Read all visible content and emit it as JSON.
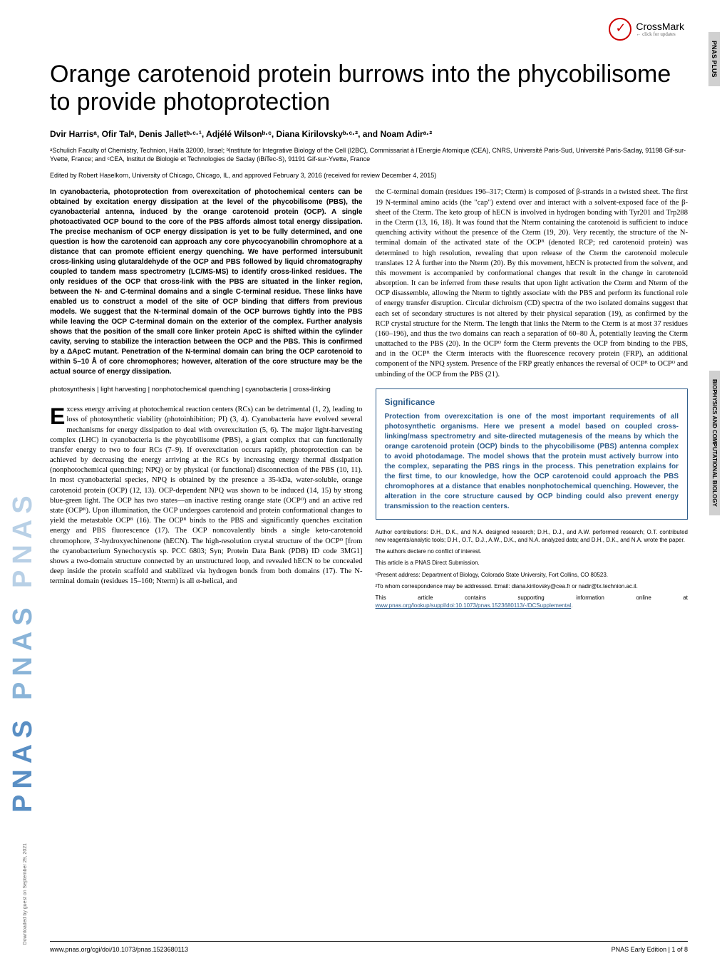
{
  "journal": {
    "logo": "PNAS",
    "plus_label": "PNAS PLUS",
    "category_label": "BIOPHYSICS AND COMPUTATIONAL BIOLOGY",
    "crossmark": "CrossMark",
    "crossmark_sub": "← click for updates"
  },
  "title": "Orange carotenoid protein burrows into the phycobilisome to provide photoprotection",
  "authors_html": "Dvir Harrisᵃ, Ofir Talᵃ, Denis Jalletᵇ·ᶜ·¹, Adjélé Wilsonᵇ·ᶜ, Diana Kirilovskyᵇ·ᶜ·², and Noam Adirᵃ·²",
  "affiliations": "ᵃSchulich Faculty of Chemistry, Technion, Haifa 32000, Israel; ᵇInstitute for Integrative Biology of the Cell (I2BC), Commissariat à l'Energie Atomique (CEA), CNRS, Université Paris-Sud, Université Paris-Saclay, 91198 Gif-sur-Yvette, France; and ᶜCEA, Institut de Biologie et Technologies de Saclay (iBiTec-S), 91191 Gif-sur-Yvette, France",
  "edited": "Edited by Robert Haselkorn, University of Chicago, Chicago, IL, and approved February 3, 2016 (received for review December 4, 2015)",
  "abstract": "In cyanobacteria, photoprotection from overexcitation of photochemical centers can be obtained by excitation energy dissipation at the level of the phycobilisome (PBS), the cyanobacterial antenna, induced by the orange carotenoid protein (OCP). A single photoactivated OCP bound to the core of the PBS affords almost total energy dissipation. The precise mechanism of OCP energy dissipation is yet to be fully determined, and one question is how the carotenoid can approach any core phycocyanobilin chromophore at a distance that can promote efficient energy quenching. We have performed intersubunit cross-linking using glutaraldehyde of the OCP and PBS followed by liquid chromatography coupled to tandem mass spectrometry (LC/MS-MS) to identify cross-linked residues. The only residues of the OCP that cross-link with the PBS are situated in the linker region, between the N- and C-terminal domains and a single C-terminal residue. These links have enabled us to construct a model of the site of OCP binding that differs from previous models. We suggest that the N-terminal domain of the OCP burrows tightly into the PBS while leaving the OCP C-terminal domain on the exterior of the complex. Further analysis shows that the position of the small core linker protein ApcC is shifted within the cylinder cavity, serving to stabilize the interaction between the OCP and the PBS. This is confirmed by a ΔApcC mutant. Penetration of the N-terminal domain can bring the OCP carotenoid to within 5–10 Å of core chromophores; however, alteration of the core structure may be the actual source of energy dissipation.",
  "keywords": "photosynthesis | light harvesting | nonphotochemical quenching | cyanobacteria | cross-linking",
  "body_left": "xcess energy arriving at photochemical reaction centers (RCs) can be detrimental (1, 2), leading to loss of photosynthetic viability (photoinhibition; PI) (3, 4). Cyanobacteria have evolved several mechanisms for energy dissipation to deal with overexcitation (5, 6). The major light-harvesting complex (LHC) in cyanobacteria is the phycobilisome (PBS), a giant complex that can functionally transfer energy to two to four RCs (7–9). If overexcitation occurs rapidly, photoprotection can be achieved by decreasing the energy arriving at the RCs by increasing energy thermal dissipation (nonphotochemical quenching; NPQ) or by physical (or functional) disconnection of the PBS (10, 11). In most cyanobacterial species, NPQ is obtained by the presence a 35-kDa, water-soluble, orange carotenoid protein (OCP) (12, 13). OCP-dependent NPQ was shown to be induced (14, 15) by strong blue-green light. The OCP has two states—an inactive resting orange state (OCPᴼ) and an active red state (OCPᴿ). Upon illumination, the OCP undergoes carotenoid and protein conformational changes to yield the metastable OCPᴿ (16). The OCPᴿ binds to the PBS and significantly quenches excitation energy and PBS fluorescence (17). The OCP noncovalently binds a single keto-carotenoid chromophore, 3′-hydroxyechinenone (hECN). The high-resolution crystal structure of the OCPᴼ [from the cyanobacterium Synechocystis sp. PCC 6803; Syn; Protein Data Bank (PDB) ID code 3MG1] shows a two-domain structure connected by an unstructured loop, and revealed hECN to be concealed deep inside the protein scaffold and stabilized via hydrogen bonds from both domains (17). The N-terminal domain (residues 15–160; Nterm) is all α-helical, and",
  "body_right": "the C-terminal domain (residues 196–317; Cterm) is composed of β-strands in a twisted sheet. The first 19 N-terminal amino acids (the \"cap\") extend over and interact with a solvent-exposed face of the β-sheet of the Cterm. The keto group of hECN is involved in hydrogen bonding with Tyr201 and Trp288 in the Cterm (13, 16, 18). It was found that the Nterm containing the carotenoid is sufficient to induce quenching activity without the presence of the Cterm (19, 20). Very recently, the structure of the N-terminal domain of the activated state of the OCPᴿ (denoted RCP; red carotenoid protein) was determined to high resolution, revealing that upon release of the Cterm the carotenoid molecule translates 12 Å further into the Nterm (20). By this movement, hECN is protected from the solvent, and this movement is accompanied by conformational changes that result in the change in carotenoid absorption. It can be inferred from these results that upon light activation the Cterm and Nterm of the OCP disassemble, allowing the Nterm to tightly associate with the PBS and perform its functional role of energy transfer disruption. Circular dichroism (CD) spectra of the two isolated domains suggest that each set of secondary structures is not altered by their physical separation (19), as confirmed by the RCP crystal structure for the Nterm. The length that links the Nterm to the Cterm is at most 37 residues (160–196), and thus the two domains can reach a separation of 60–80 Å, potentially leaving the Cterm unattached to the PBS (20). In the OCPᴼ form the Cterm prevents the OCP from binding to the PBS, and in the OCPᴿ the Cterm interacts with the fluorescence recovery protein (FRP), an additional component of the NPQ system. Presence of the FRP greatly enhances the reversal of OCPᴿ to OCPᴼ and unbinding of the OCP from the PBS (21).",
  "significance": {
    "title": "Significance",
    "body": "Protection from overexcitation is one of the most important requirements of all photosynthetic organisms. Here we present a model based on coupled cross-linking/mass spectrometry and site-directed mutagenesis of the means by which the orange carotenoid protein (OCP) binds to the phycobilisome (PBS) antenna complex to avoid photodamage. The model shows that the protein must actively burrow into the complex, separating the PBS rings in the process. This penetration explains for the first time, to our knowledge, how the OCP carotenoid could approach the PBS chromophores at a distance that enables nonphotochemical quenching. However, the alteration in the core structure caused by OCP binding could also prevent energy transmission to the reaction centers."
  },
  "footnotes": {
    "contributions": "Author contributions: D.H., D.K., and N.A. designed research; D.H., D.J., and A.W. performed research; O.T. contributed new reagents/analytic tools; D.H., O.T., D.J., A.W., D.K., and N.A. analyzed data; and D.H., D.K., and N.A. wrote the paper.",
    "conflict": "The authors declare no conflict of interest.",
    "submission": "This article is a PNAS Direct Submission.",
    "address1": "¹Present address: Department of Biology, Colorado State University, Fort Collins, CO 80523.",
    "address2": "²To whom correspondence may be addressed. Email: diana.kirilovsky@cea.fr or nadir@tx.technion.ac.il.",
    "supplement": "This article contains supporting information online at ",
    "supplement_link": "www.pnas.org/lookup/suppl/doi:10.1073/pnas.1523680113/-/DCSupplemental"
  },
  "footer": {
    "doi": "www.pnas.org/cgi/doi/10.1073/pnas.1523680113",
    "page": "PNAS Early Edition | 1 of 8"
  },
  "download": "Downloaded by guest on September 29, 2021"
}
